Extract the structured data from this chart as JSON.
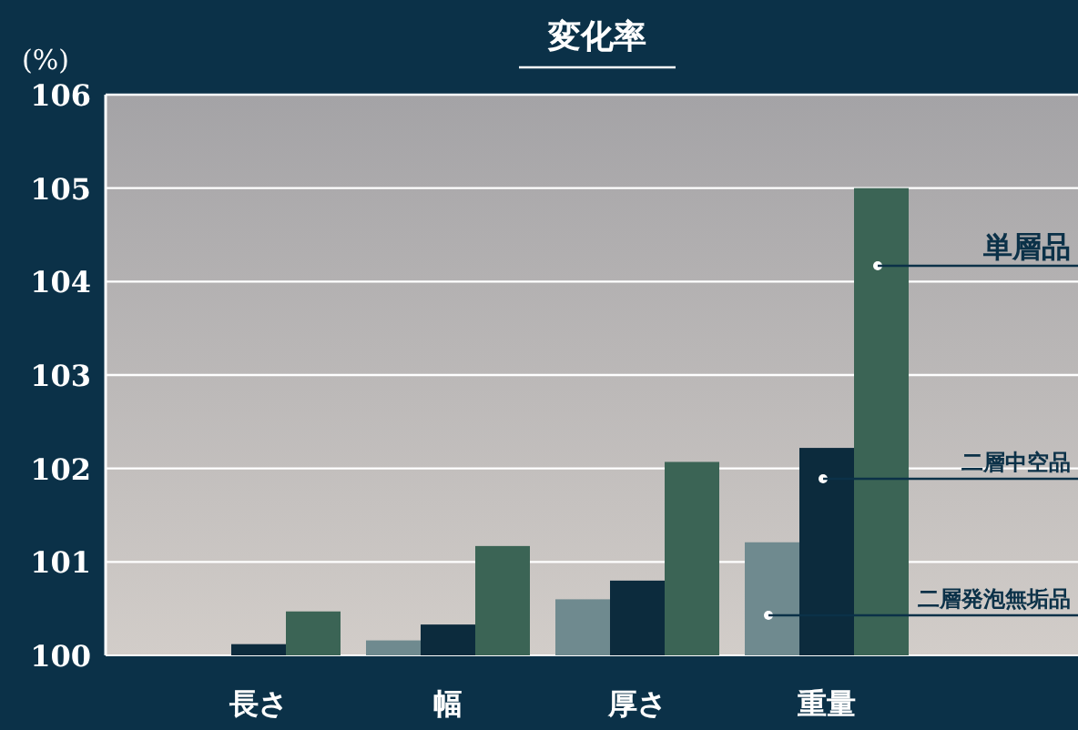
{
  "chart_data": {
    "type": "bar",
    "title": "変化率",
    "ylabel": "(%)",
    "categories": [
      "長さ",
      "幅",
      "厚さ",
      "重量"
    ],
    "series": [
      {
        "name": "二層発泡無垢品",
        "color": "#6f8a8f",
        "values": [
          null,
          100.16,
          100.6,
          101.21
        ]
      },
      {
        "name": "二層中空品",
        "color": "#0c2b3d",
        "values": [
          100.12,
          100.33,
          100.8,
          102.22
        ]
      },
      {
        "name": "単層品",
        "color": "#3b6455",
        "values": [
          100.47,
          101.17,
          102.07,
          105.0
        ]
      }
    ],
    "ylim": [
      100,
      106
    ],
    "yticks": [
      100,
      101,
      102,
      103,
      104,
      105,
      106
    ],
    "grid": "y"
  }
}
